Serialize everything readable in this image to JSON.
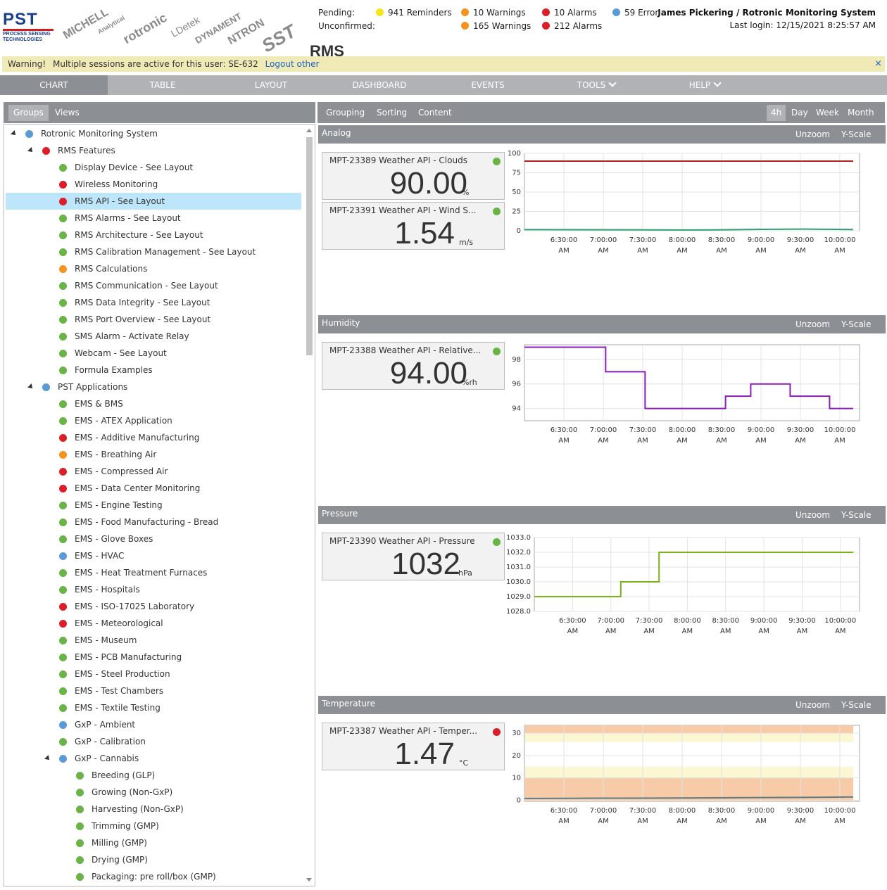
{
  "header": {
    "logo_main": "PST",
    "logo_sub": "PROCESS SENSING TECHNOLOGIES",
    "brands": [
      "MICHELL",
      "Analytical",
      "rotronic",
      "LDetek",
      "DYNAMENT",
      "NTRON",
      "SST"
    ],
    "pending_label": "Pending:",
    "unconfirmed_label": "Unconfirmed:",
    "pending": {
      "reminders": "941 Reminders",
      "warnings": "10 Warnings",
      "alarms": "10 Alarms",
      "errors": "59 Error"
    },
    "unconfirmed": {
      "warnings": "165 Warnings",
      "alarms": "212 Alarms"
    },
    "user": "James Pickering / Rotronic Monitoring System",
    "last_login": "Last login: 12/15/2021 8:25:57 AM",
    "app_title": "RMS"
  },
  "warning": {
    "label": "Warning!",
    "text": "Multiple sessions are active for this user: SE-632",
    "link": "Logout other",
    "close": "×"
  },
  "nav": [
    "CHART",
    "TABLE",
    "LAYOUT",
    "DASHBOARD",
    "EVENTS",
    "TOOLS",
    "HELP"
  ],
  "left_tabs": [
    "Groups",
    "Views"
  ],
  "tree": [
    {
      "label": "Rotronic Monitoring System",
      "level": 0,
      "status": "blue",
      "expanded": true
    },
    {
      "label": "RMS Features",
      "level": 1,
      "status": "red",
      "expanded": true
    },
    {
      "label": "Display Device - See Layout",
      "level": 2,
      "status": "green"
    },
    {
      "label": "Wireless Monitoring",
      "level": 2,
      "status": "red"
    },
    {
      "label": "RMS API - See Layout",
      "level": 2,
      "status": "red",
      "selected": true
    },
    {
      "label": "RMS Alarms - See Layout",
      "level": 2,
      "status": "green"
    },
    {
      "label": "RMS Architecture - See Layout",
      "level": 2,
      "status": "green"
    },
    {
      "label": "RMS Calibration Management - See Layout",
      "level": 2,
      "status": "green"
    },
    {
      "label": "RMS Calculations",
      "level": 2,
      "status": "orange"
    },
    {
      "label": "RMS Communication - See Layout",
      "level": 2,
      "status": "green"
    },
    {
      "label": "RMS Data Integrity - See Layout",
      "level": 2,
      "status": "green"
    },
    {
      "label": "RMS Port Overview - See Layout",
      "level": 2,
      "status": "green"
    },
    {
      "label": "SMS Alarm - Activate Relay",
      "level": 2,
      "status": "green"
    },
    {
      "label": "Webcam - See Layout",
      "level": 2,
      "status": "green"
    },
    {
      "label": "Formula Examples",
      "level": 2,
      "status": "green"
    },
    {
      "label": "PST Applications",
      "level": 1,
      "status": "blue",
      "expanded": true
    },
    {
      "label": "EMS & BMS",
      "level": 2,
      "status": "green"
    },
    {
      "label": "EMS - ATEX Application",
      "level": 2,
      "status": "green"
    },
    {
      "label": "EMS - Additive Manufacturing",
      "level": 2,
      "status": "red"
    },
    {
      "label": "EMS - Breathing Air",
      "level": 2,
      "status": "orange"
    },
    {
      "label": "EMS - Compressed Air",
      "level": 2,
      "status": "red"
    },
    {
      "label": "EMS - Data Center Monitoring",
      "level": 2,
      "status": "red"
    },
    {
      "label": "EMS - Engine Testing",
      "level": 2,
      "status": "green"
    },
    {
      "label": "EMS - Food Manufacturing - Bread",
      "level": 2,
      "status": "green"
    },
    {
      "label": "EMS - Glove Boxes",
      "level": 2,
      "status": "green"
    },
    {
      "label": "EMS - HVAC",
      "level": 2,
      "status": "blue"
    },
    {
      "label": "EMS - Heat Treatment Furnaces",
      "level": 2,
      "status": "green"
    },
    {
      "label": "EMS - Hospitals",
      "level": 2,
      "status": "green"
    },
    {
      "label": "EMS - ISO-17025 Laboratory",
      "level": 2,
      "status": "red"
    },
    {
      "label": "EMS - Meteorological",
      "level": 2,
      "status": "red"
    },
    {
      "label": "EMS - Museum",
      "level": 2,
      "status": "green"
    },
    {
      "label": "EMS - PCB Manufacturing",
      "level": 2,
      "status": "green"
    },
    {
      "label": "EMS - Steel Production",
      "level": 2,
      "status": "green"
    },
    {
      "label": "EMS - Test Chambers",
      "level": 2,
      "status": "green"
    },
    {
      "label": "EMS - Textile Testing",
      "level": 2,
      "status": "green"
    },
    {
      "label": "GxP - Ambient",
      "level": 2,
      "status": "blue"
    },
    {
      "label": "GxP - Calibration",
      "level": 2,
      "status": "green"
    },
    {
      "label": "GxP - Cannabis",
      "level": 2,
      "status": "blue",
      "expanded": true
    },
    {
      "label": "Breeding (GLP)",
      "level": 3,
      "status": "green"
    },
    {
      "label": "Growing (Non-GxP)",
      "level": 3,
      "status": "green"
    },
    {
      "label": "Harvesting (Non-GxP)",
      "level": 3,
      "status": "green"
    },
    {
      "label": "Trimming (GMP)",
      "level": 3,
      "status": "green"
    },
    {
      "label": "Milling (GMP)",
      "level": 3,
      "status": "green"
    },
    {
      "label": "Drying (GMP)",
      "level": 3,
      "status": "green"
    },
    {
      "label": "Packaging: pre roll/box (GMP)",
      "level": 3,
      "status": "green"
    }
  ],
  "right_tabs": [
    "Grouping",
    "Sorting",
    "Content"
  ],
  "ranges": [
    "4h",
    "Day",
    "Week",
    "Month"
  ],
  "active_range": "4h",
  "panel_buttons": [
    "Unzoom",
    "Y-Scale"
  ],
  "colors": {
    "green": "#6ab446",
    "red": "#dc1e28",
    "orange": "#f6921e",
    "blue": "#5a9bd5",
    "yellow": "#f5e61a"
  },
  "panels": [
    {
      "title": "Analog",
      "cards": [
        {
          "name": "MPT-23389 Weather API - Clouds",
          "value": "90.00",
          "unit": "%",
          "status": "green"
        },
        {
          "name": "MPT-23391 Weather API - Wind S...",
          "value": "1.54",
          "unit": "m/s",
          "status": "green"
        }
      ]
    },
    {
      "title": "Humidity",
      "cards": [
        {
          "name": "MPT-23388 Weather API - Relative...",
          "value": "94.00",
          "unit": "%rh",
          "status": "green"
        }
      ]
    },
    {
      "title": "Pressure",
      "cards": [
        {
          "name": "MPT-23390 Weather API - Pressure",
          "value": "1032",
          "unit": "hPa",
          "status": "green"
        }
      ]
    },
    {
      "title": "Temperature",
      "cards": [
        {
          "name": "MPT-23387 Weather API - Temper...",
          "value": "1.47",
          "unit": "°C",
          "status": "red"
        }
      ]
    }
  ],
  "chart_data": [
    {
      "type": "line",
      "x_ticks": [
        "6:30:00 AM",
        "7:00:00 AM",
        "7:30:00 AM",
        "8:00:00 AM",
        "8:30:00 AM",
        "9:00:00 AM",
        "9:30:00 AM",
        "10:00:00 AM"
      ],
      "y_ticks": [
        "100",
        "75",
        "50",
        "25",
        "0"
      ],
      "ylim": [
        0,
        100
      ],
      "series": [
        {
          "color": "#b22222",
          "points": [
            [
              6.0,
              90
            ],
            [
              10.17,
              90
            ]
          ]
        },
        {
          "color": "#2e9f73",
          "points": [
            [
              6.0,
              1.5
            ],
            [
              7.1,
              1.3
            ],
            [
              8.0,
              1.0
            ],
            [
              8.5,
              1.2
            ],
            [
              9.0,
              1.8
            ],
            [
              9.5,
              2.2
            ],
            [
              10.17,
              1.54
            ]
          ]
        }
      ]
    },
    {
      "type": "line",
      "x_ticks": [
        "6:30:00 AM",
        "7:00:00 AM",
        "7:30:00 AM",
        "8:00:00 AM",
        "8:30:00 AM",
        "9:00:00 AM",
        "9:30:00 AM",
        "10:00:00 AM"
      ],
      "y_ticks": [
        "98",
        "96",
        "94"
      ],
      "ylim": [
        93,
        99.2
      ],
      "series": [
        {
          "color": "#8a1fb5",
          "step": true,
          "points": [
            [
              6.0,
              99
            ],
            [
              7.03,
              97
            ],
            [
              7.53,
              94
            ],
            [
              8.55,
              95
            ],
            [
              8.87,
              96
            ],
            [
              9.37,
              95
            ],
            [
              9.87,
              94
            ],
            [
              10.17,
              94
            ]
          ]
        }
      ]
    },
    {
      "type": "line",
      "x_ticks": [
        "6:30:00 AM",
        "7:00:00 AM",
        "7:30:00 AM",
        "8:00:00 AM",
        "8:30:00 AM",
        "9:00:00 AM",
        "9:30:00 AM",
        "10:00:00 AM"
      ],
      "y_ticks": [
        "1033.0",
        "1032.0",
        "1031.0",
        "1030.0",
        "1029.0",
        "1028.0"
      ],
      "ylim": [
        1028,
        1033
      ],
      "series": [
        {
          "color": "#7ab319",
          "step": true,
          "points": [
            [
              6.0,
              1029
            ],
            [
              7.13,
              1030
            ],
            [
              7.63,
              1032
            ],
            [
              10.17,
              1032
            ]
          ]
        }
      ]
    },
    {
      "type": "line",
      "x_ticks": [
        "6:30:00 AM",
        "7:00:00 AM",
        "7:30:00 AM",
        "8:00:00 AM",
        "8:30:00 AM",
        "9:00:00 AM",
        "9:30:00 AM",
        "10:00:00 AM"
      ],
      "y_ticks": [
        "30",
        "20",
        "10",
        "0"
      ],
      "ylim": [
        -0.5,
        33.5
      ],
      "bands": [
        {
          "from": 30,
          "to": 33.5,
          "color": "#f7cba8"
        },
        {
          "from": 26,
          "to": 30,
          "color": "#fbf7d2"
        },
        {
          "from": 10,
          "to": 15,
          "color": "#fbf7d2"
        },
        {
          "from": -0.5,
          "to": 10,
          "color": "#f7cba8"
        }
      ],
      "series": [
        {
          "color": "#5f7a80",
          "points": [
            [
              6.0,
              0.8
            ],
            [
              7.0,
              0.9
            ],
            [
              8.0,
              1.0
            ],
            [
              9.0,
              1.2
            ],
            [
              9.7,
              1.3
            ],
            [
              10.17,
              1.47
            ]
          ]
        }
      ]
    }
  ]
}
